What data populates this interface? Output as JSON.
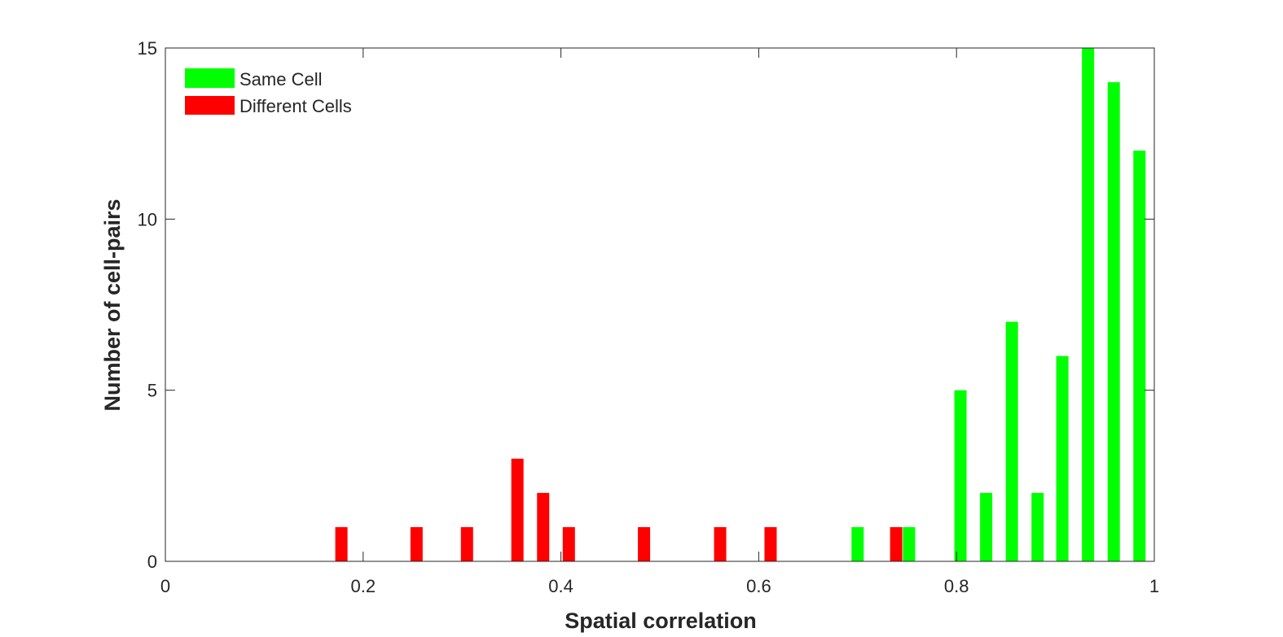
{
  "chart_data": {
    "type": "bar",
    "xlabel": "Spatial correlation",
    "ylabel": "Number of cell-pairs",
    "xlim": [
      0,
      1
    ],
    "ylim": [
      0,
      15
    ],
    "xticks": [
      "0",
      "0.2",
      "0.4",
      "0.6",
      "0.8",
      "1"
    ],
    "yticks": [
      "0",
      "5",
      "10",
      "15"
    ],
    "grid": false,
    "legend_position": "top-left",
    "series": [
      {
        "name": "Same Cell",
        "color": "#00ff00",
        "points": [
          {
            "x": 0.7,
            "y": 1
          },
          {
            "x": 0.752,
            "y": 1
          },
          {
            "x": 0.804,
            "y": 5
          },
          {
            "x": 0.83,
            "y": 2
          },
          {
            "x": 0.856,
            "y": 7
          },
          {
            "x": 0.882,
            "y": 2
          },
          {
            "x": 0.907,
            "y": 6
          },
          {
            "x": 0.933,
            "y": 15
          },
          {
            "x": 0.959,
            "y": 14
          },
          {
            "x": 0.985,
            "y": 12
          }
        ]
      },
      {
        "name": "Different Cells",
        "color": "#ff0000",
        "points": [
          {
            "x": 0.178,
            "y": 1
          },
          {
            "x": 0.254,
            "y": 1
          },
          {
            "x": 0.305,
            "y": 1
          },
          {
            "x": 0.356,
            "y": 3
          },
          {
            "x": 0.382,
            "y": 2
          },
          {
            "x": 0.408,
            "y": 1
          },
          {
            "x": 0.484,
            "y": 1
          },
          {
            "x": 0.561,
            "y": 1
          },
          {
            "x": 0.612,
            "y": 1
          },
          {
            "x": 0.739,
            "y": 1
          }
        ]
      }
    ]
  }
}
